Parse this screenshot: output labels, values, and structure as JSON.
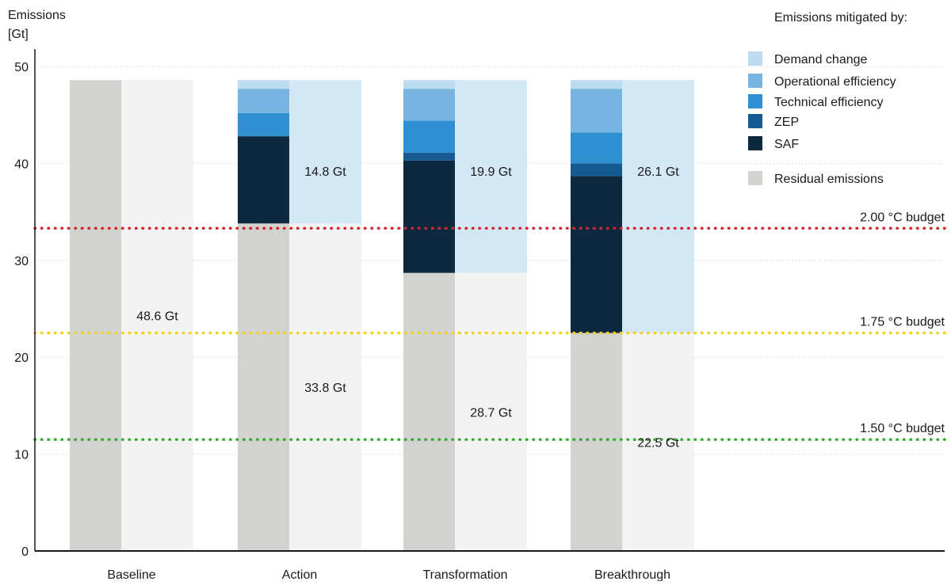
{
  "chart_data": {
    "type": "bar",
    "ylabel_line1": "Emissions",
    "ylabel_line2": "[Gt]",
    "ylim": [
      0,
      50
    ],
    "yticks": [
      0,
      10,
      20,
      30,
      40,
      50
    ],
    "grid": true,
    "categories": [
      "Baseline",
      "Action",
      "Transformation",
      "Breakthrough"
    ],
    "legend": {
      "title": "Emissions mitigated by:",
      "placement": "top-right",
      "entries": [
        {
          "name": "Demand change",
          "color": "#bddcf2"
        },
        {
          "name": "Operational efficiency",
          "color": "#78b4e1"
        },
        {
          "name": "Technical efficiency",
          "color": "#2f8fd0"
        },
        {
          "name": "ZEP",
          "color": "#155a91"
        },
        {
          "name": "SAF",
          "color": "#0e2840"
        },
        {
          "name": "Residual emissions",
          "color": "#d2d2d0"
        }
      ]
    },
    "scenarios": [
      {
        "name": "Baseline",
        "residual": 48.6,
        "mitigated_total": 0,
        "residual_label": "48.6 Gt",
        "mitigated_label": "",
        "stack": []
      },
      {
        "name": "Action",
        "residual": 33.8,
        "mitigated_total": 14.8,
        "residual_label": "33.8 Gt",
        "mitigated_label": "14.8 Gt",
        "stack": [
          {
            "series": "SAF",
            "value": 9.0
          },
          {
            "series": "ZEP",
            "value": 0.0
          },
          {
            "series": "Technical efficiency",
            "value": 2.4
          },
          {
            "series": "Operational efficiency",
            "value": 2.5
          },
          {
            "series": "Demand change",
            "value": 0.9
          }
        ]
      },
      {
        "name": "Transformation",
        "residual": 28.7,
        "mitigated_total": 19.9,
        "residual_label": "28.7 Gt",
        "mitigated_label": "19.9 Gt",
        "stack": [
          {
            "series": "SAF",
            "value": 11.6
          },
          {
            "series": "ZEP",
            "value": 0.8
          },
          {
            "series": "Technical efficiency",
            "value": 3.3
          },
          {
            "series": "Operational efficiency",
            "value": 3.3
          },
          {
            "series": "Demand change",
            "value": 0.9
          }
        ]
      },
      {
        "name": "Breakthrough",
        "residual": 22.5,
        "mitigated_total": 26.1,
        "residual_label": "22.5 Gt",
        "mitigated_label": "26.1 Gt",
        "stack": [
          {
            "series": "SAF",
            "value": 16.2
          },
          {
            "series": "ZEP",
            "value": 1.3
          },
          {
            "series": "Technical efficiency",
            "value": 3.2
          },
          {
            "series": "Operational efficiency",
            "value": 4.5
          },
          {
            "series": "Demand change",
            "value": 0.9
          }
        ]
      }
    ],
    "budgets": [
      {
        "label": "2.00 °C budget",
        "value": 33.3,
        "color": "#d7262e"
      },
      {
        "label": "1.75 °C budget",
        "value": 22.5,
        "color": "#f1d21c"
      },
      {
        "label": "1.50 °C budget",
        "value": 11.5,
        "color": "#3aa935"
      }
    ],
    "colors": {
      "residual": "#d2d2d0",
      "residual_light": "#f3f3f3",
      "mitigated_light": "#d3e7f5"
    }
  }
}
